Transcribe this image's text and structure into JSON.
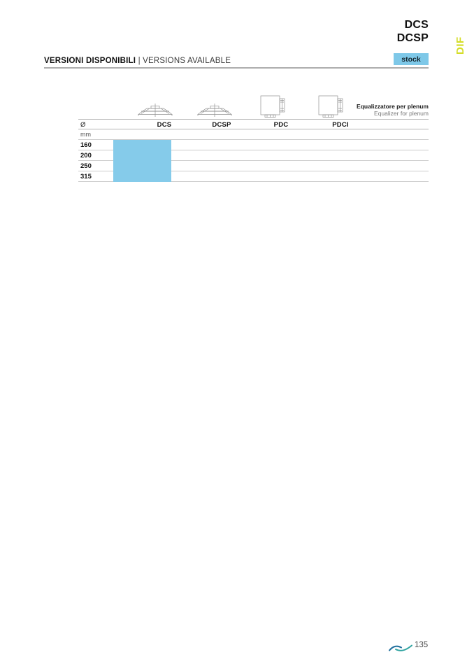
{
  "header": {
    "product_titles": [
      "DCS",
      "DCSP"
    ],
    "side_tab_label": "DIF",
    "section_title_it": "VERSIONI DISPONIBILI",
    "section_separator": "|",
    "section_title_en": "VERSIONS AVAILABLE",
    "stock_badge_label": "stock"
  },
  "table": {
    "diameter_header": "Ø",
    "unit_row_label": "mm",
    "columns": [
      "DCS",
      "DCSP",
      "PDC",
      "PDCI"
    ],
    "column_icons": [
      "diffuser-icon",
      "diffuser-icon",
      "plenum-box-icon",
      "plenum-box-icon"
    ],
    "plenum_note_line1": "Equalizzatore per plenum",
    "plenum_note_line2": "Equalizer for plenum",
    "rows": [
      {
        "diameter": "160",
        "dcs_available": true,
        "dcsp_available": false,
        "pdc_available": false,
        "pdci_available": false
      },
      {
        "diameter": "200",
        "dcs_available": true,
        "dcsp_available": false,
        "pdc_available": false,
        "pdci_available": false
      },
      {
        "diameter": "250",
        "dcs_available": true,
        "dcsp_available": false,
        "pdc_available": false,
        "pdci_available": false
      },
      {
        "diameter": "315",
        "dcs_available": true,
        "dcsp_available": false,
        "pdc_available": false,
        "pdci_available": false
      }
    ]
  },
  "footer": {
    "page_number": "135",
    "logo": "wave-logo"
  },
  "colors": {
    "availability_highlight": "#85CBEA",
    "stock_badge_bg": "#7EC8E8",
    "accent_tab": "#D4DD26",
    "logo_blue": "#23719F",
    "logo_teal": "#2FA3A0"
  }
}
